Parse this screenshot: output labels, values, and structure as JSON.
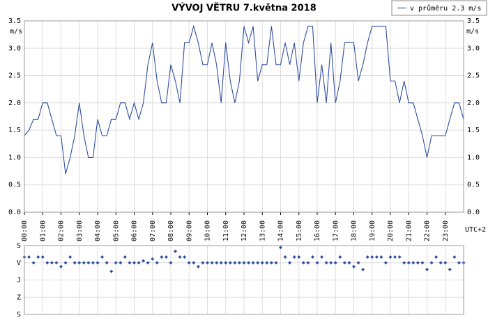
{
  "chart_data": [
    {
      "type": "line",
      "title": "VÝVOJ VĚTRU  7.května 2018",
      "ylabel": "m/s",
      "xlabel": "UTC+2",
      "legend": "top-right",
      "grid": true,
      "xlim": [
        0,
        24
      ],
      "xticks": [
        {
          "value": 0,
          "label": "00:00"
        },
        {
          "value": 1,
          "label": "01:00"
        },
        {
          "value": 2,
          "label": "02:00"
        },
        {
          "value": 3,
          "label": "03:00"
        },
        {
          "value": 4,
          "label": "04:00"
        },
        {
          "value": 5,
          "label": "05:00"
        },
        {
          "value": 6,
          "label": "06:00"
        },
        {
          "value": 7,
          "label": "07:00"
        },
        {
          "value": 8,
          "label": "08:00"
        },
        {
          "value": 9,
          "label": "09:00"
        },
        {
          "value": 10,
          "label": "10:00"
        },
        {
          "value": 11,
          "label": "11:00"
        },
        {
          "value": 12,
          "label": "12:00"
        },
        {
          "value": 13,
          "label": "13:00"
        },
        {
          "value": 14,
          "label": "14:00"
        },
        {
          "value": 15,
          "label": "15:00"
        },
        {
          "value": 16,
          "label": "16:00"
        },
        {
          "value": 17,
          "label": "17:00"
        },
        {
          "value": 18,
          "label": "18:00"
        },
        {
          "value": 19,
          "label": "19:00"
        },
        {
          "value": 20,
          "label": "20:00"
        },
        {
          "value": 21,
          "label": "21:00"
        },
        {
          "value": 22,
          "label": "22:00"
        },
        {
          "value": 23,
          "label": "23:00"
        }
      ],
      "ylim": [
        0,
        3.5
      ],
      "yticks": [
        {
          "value": 0,
          "label": "0.0"
        },
        {
          "value": 0.5,
          "label": "0.5"
        },
        {
          "value": 1,
          "label": "1.0"
        },
        {
          "value": 1.5,
          "label": "1.5"
        },
        {
          "value": 2,
          "label": "2.0"
        },
        {
          "value": 2.5,
          "label": "2.5"
        },
        {
          "value": 3,
          "label": "3.0"
        },
        {
          "value": 3.5,
          "label": "3.5"
        }
      ],
      "x": [
        0,
        0.25,
        0.5,
        0.75,
        1,
        1.25,
        1.5,
        1.75,
        2,
        2.25,
        2.5,
        2.75,
        3,
        3.25,
        3.5,
        3.75,
        4,
        4.25,
        4.5,
        4.75,
        5,
        5.25,
        5.5,
        5.75,
        6,
        6.25,
        6.5,
        6.75,
        7,
        7.25,
        7.5,
        7.75,
        8,
        8.25,
        8.5,
        8.75,
        9,
        9.25,
        9.5,
        9.75,
        10,
        10.25,
        10.5,
        10.75,
        11,
        11.25,
        11.5,
        11.75,
        12,
        12.25,
        12.5,
        12.75,
        13,
        13.25,
        13.5,
        13.75,
        14,
        14.25,
        14.5,
        14.75,
        15,
        15.25,
        15.5,
        15.75,
        16,
        16.25,
        16.5,
        16.75,
        17,
        17.25,
        17.5,
        17.75,
        18,
        18.25,
        18.5,
        18.75,
        19,
        19.25,
        19.5,
        19.75,
        20,
        20.25,
        20.5,
        20.75,
        21,
        21.25,
        21.5,
        21.75,
        22,
        22.25,
        22.5,
        22.75,
        23,
        23.25,
        23.5,
        23.75,
        24
      ],
      "series": [
        {
          "name": "v průměru 2.3 m/s",
          "color": "#2f4f9f",
          "values": [
            1.4,
            1.5,
            1.7,
            1.7,
            2.0,
            2.0,
            1.7,
            1.4,
            1.4,
            0.7,
            1.0,
            1.4,
            2.0,
            1.4,
            1.0,
            1.0,
            1.7,
            1.4,
            1.4,
            1.7,
            1.7,
            2.0,
            2.0,
            1.7,
            2.0,
            1.7,
            2.0,
            2.7,
            3.1,
            2.4,
            2.0,
            2.0,
            2.7,
            2.4,
            2.0,
            3.1,
            3.1,
            3.4,
            3.1,
            2.7,
            2.7,
            3.1,
            2.7,
            2.0,
            3.1,
            2.4,
            2.0,
            2.4,
            3.4,
            3.1,
            3.4,
            2.4,
            2.7,
            2.7,
            3.4,
            2.7,
            2.7,
            3.1,
            2.7,
            3.1,
            2.4,
            3.1,
            3.4,
            3.4,
            2.0,
            2.7,
            2.0,
            3.1,
            2.0,
            2.4,
            3.1,
            3.1,
            3.1,
            2.4,
            2.7,
            3.1,
            3.4,
            3.4,
            3.4,
            3.4,
            2.4,
            2.4,
            2.0,
            2.4,
            2.0,
            2.0,
            1.7,
            1.4,
            1.0,
            1.4,
            1.4,
            1.4,
            1.4,
            1.7,
            2.0,
            2.0,
            1.7
          ]
        }
      ]
    },
    {
      "type": "scatter",
      "grid": true,
      "xlim": [
        0,
        24
      ],
      "ylim": [
        360,
        0
      ],
      "yticks": [
        {
          "value": 0,
          "label": "S"
        },
        {
          "value": 90,
          "label": "V"
        },
        {
          "value": 180,
          "label": "J"
        },
        {
          "value": 270,
          "label": "Z"
        },
        {
          "value": 360,
          "label": "S"
        }
      ],
      "x": [
        0,
        0.25,
        0.5,
        0.75,
        1,
        1.25,
        1.5,
        1.75,
        2,
        2.25,
        2.5,
        2.75,
        3,
        3.25,
        3.5,
        3.75,
        4,
        4.25,
        4.5,
        4.75,
        5,
        5.25,
        5.5,
        5.75,
        6,
        6.25,
        6.5,
        6.75,
        7,
        7.25,
        7.5,
        7.75,
        8,
        8.25,
        8.5,
        8.75,
        9,
        9.25,
        9.5,
        9.75,
        10,
        10.25,
        10.5,
        10.75,
        11,
        11.25,
        11.5,
        11.75,
        12,
        12.25,
        12.5,
        12.75,
        13,
        13.25,
        13.5,
        13.75,
        14,
        14.25,
        14.5,
        14.75,
        15,
        15.25,
        15.5,
        15.75,
        16,
        16.25,
        16.5,
        16.75,
        17,
        17.25,
        17.5,
        17.75,
        18,
        18.25,
        18.5,
        18.75,
        19,
        19.25,
        19.5,
        19.75,
        20,
        20.25,
        20.5,
        20.75,
        21,
        21.25,
        21.5,
        21.75,
        22,
        22.25,
        22.5,
        22.75,
        23,
        23.25,
        23.5,
        23.75,
        24
      ],
      "color": "#2f4f9f",
      "values": [
        60,
        60,
        90,
        60,
        60,
        90,
        90,
        90,
        110,
        90,
        60,
        90,
        90,
        90,
        90,
        90,
        90,
        60,
        90,
        135,
        90,
        90,
        60,
        90,
        90,
        90,
        80,
        90,
        70,
        90,
        60,
        60,
        90,
        30,
        60,
        60,
        90,
        90,
        110,
        90,
        90,
        90,
        90,
        90,
        90,
        90,
        90,
        90,
        90,
        90,
        90,
        90,
        90,
        90,
        90,
        90,
        10,
        60,
        90,
        60,
        60,
        90,
        90,
        60,
        90,
        60,
        90,
        90,
        90,
        60,
        90,
        90,
        110,
        90,
        125,
        60,
        60,
        60,
        60,
        90,
        60,
        60,
        60,
        90,
        90,
        90,
        90,
        90,
        125,
        90,
        60,
        90,
        90,
        125,
        60,
        90,
        90
      ]
    }
  ]
}
